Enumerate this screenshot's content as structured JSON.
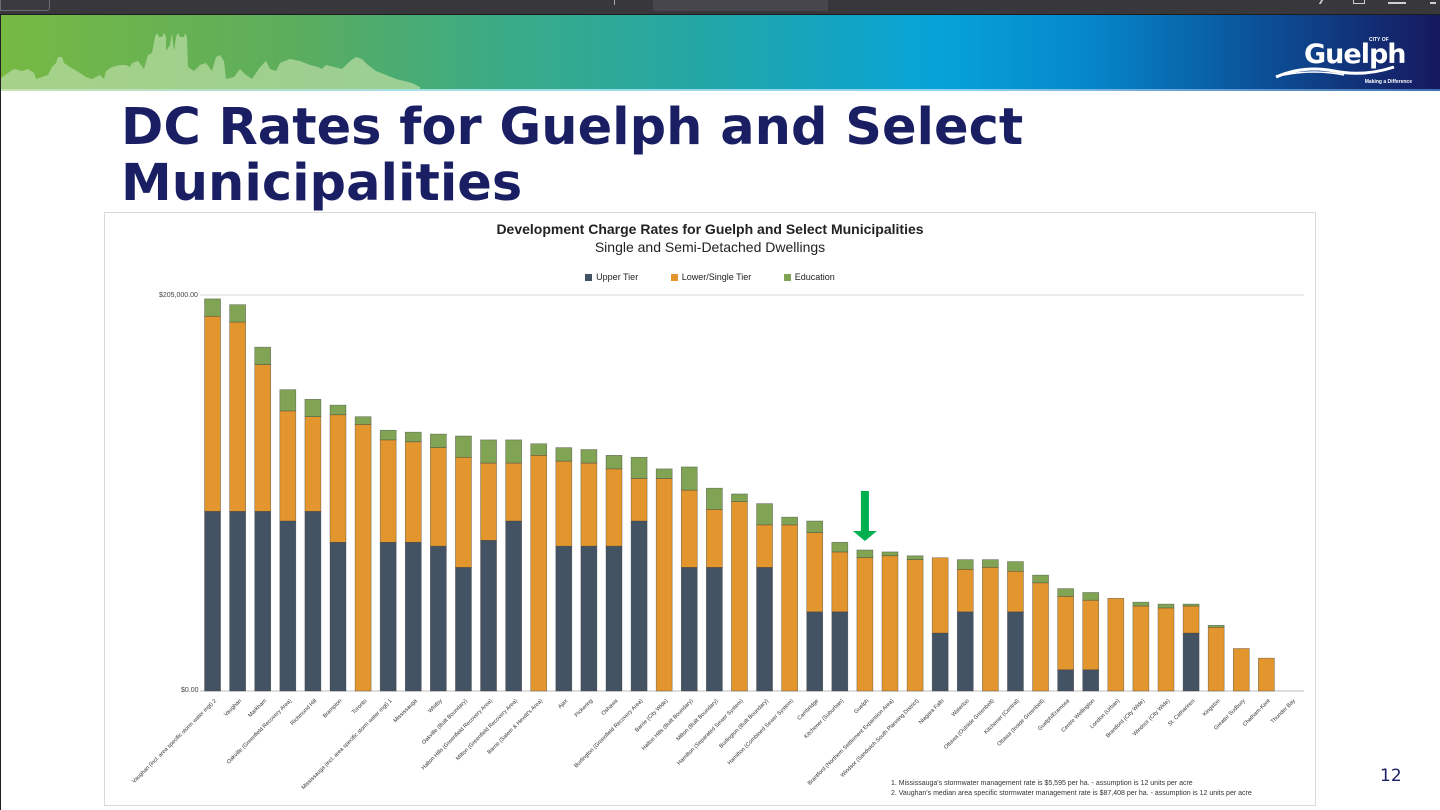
{
  "window": {
    "banner_logo": {
      "city_of": "CITY OF",
      "name": "Guelph",
      "tagline": "Making a Difference"
    }
  },
  "slide": {
    "title": "DC Rates for Guelph and Select Municipalities",
    "page_number": "12",
    "footnotes": [
      "1. Mississauga's stormwater management rate is $5,595 per ha. - assumption is 12 units per acre",
      "2. Vaughan's median area specific stormwater management rate is $87,408 per ha. - assumption is 12 units per acre"
    ],
    "highlight_arrow_target": "Guelph"
  },
  "colors": {
    "upper_tier": "#435364",
    "lower_tier": "#e3962d",
    "education": "#80a454",
    "title": "#1a1f63",
    "arrow": "#00b050"
  },
  "chart_data": {
    "type": "bar",
    "stacked": true,
    "title": "Development Charge Rates for Guelph and Select Municipalities",
    "subtitle": "Single and Semi-Detached Dwellings",
    "xlabel": "",
    "ylabel": "",
    "ylim": [
      0,
      205000
    ],
    "yticks": [
      "$0.00",
      "$205,000.00"
    ],
    "grid": false,
    "legend_position": "top",
    "categories": [
      "Vaughan (incl. area specific storm water mgt) 2",
      "Vaughan",
      "Markham",
      "Oakville (Greenfield Recovery Area)",
      "Richmond Hill",
      "Brampton",
      "Toronto",
      "Mississauga (incl. area specific storm water mgt) 1",
      "Mississauga",
      "Whitby",
      "Oakville (Built Boundary)",
      "Halton Hills (Greenfield Recovery Area)",
      "Milton (Greenfield Recovery Area)",
      "Barrie (Salem & Hewitt's Area)",
      "Ajax",
      "Pickering",
      "Oshawa",
      "Burlington (Greenfield Recovery Area)",
      "Barrie (City Wide)",
      "Halton Hills (Built Boundary)",
      "Milton (Built Boundary)",
      "Hamilton (Separated Sewer System)",
      "Burlington (Built Boundary)",
      "Hamilton (Combined Sewer System)",
      "Cambridge",
      "Kitchener (Suburban)",
      "Guelph",
      "Brantford (Northern Settlement Expansion Area)",
      "Windsor (Sandwich South Planning District)",
      "Niagara Falls",
      "Waterloo",
      "Ottawa (Outside Greenbelt)",
      "Kitchener (Central)",
      "Ottawa (Inside Greenbelt)",
      "Guelph/Eramosa",
      "Centre Wellington",
      "London (Urban)",
      "Brantford (City Wide)",
      "Windsor (City Wide)",
      "St. Catharines",
      "Kingston",
      "Greater Sudbury",
      "Chatham-Kent",
      "Thunder Bay"
    ],
    "series": [
      {
        "name": "Upper Tier",
        "values": [
          93000,
          93000,
          93000,
          88000,
          93000,
          77000,
          0,
          77000,
          77000,
          75000,
          64000,
          78000,
          88000,
          0,
          75000,
          75000,
          75000,
          88000,
          0,
          64000,
          64000,
          0,
          64000,
          0,
          41000,
          41000,
          0,
          0,
          0,
          30000,
          41000,
          0,
          41000,
          0,
          11000,
          11000,
          0,
          0,
          0,
          30000,
          0,
          0,
          0,
          0
        ]
      },
      {
        "name": "Lower/Single Tier",
        "values": [
          101000,
          98000,
          76000,
          57000,
          49000,
          66000,
          138000,
          53000,
          52000,
          51000,
          57000,
          40000,
          30000,
          122000,
          44000,
          43000,
          40000,
          22000,
          110000,
          40000,
          30000,
          98000,
          22000,
          86000,
          41000,
          31000,
          69000,
          70000,
          68000,
          39000,
          22000,
          64000,
          21000,
          56000,
          38000,
          36000,
          48000,
          44000,
          43000,
          14000,
          33000,
          22000,
          17000,
          0
        ]
      },
      {
        "name": "Education",
        "values": [
          9000,
          9000,
          9000,
          11000,
          9000,
          5000,
          4000,
          5000,
          5000,
          7000,
          11000,
          12000,
          12000,
          6000,
          7000,
          7000,
          7000,
          11000,
          5000,
          12000,
          11000,
          4000,
          11000,
          4000,
          6000,
          5000,
          4000,
          2000,
          2000,
          0,
          5000,
          4000,
          5000,
          4000,
          4000,
          4000,
          0,
          2000,
          2000,
          1000,
          1000,
          0,
          0,
          0
        ]
      }
    ]
  }
}
